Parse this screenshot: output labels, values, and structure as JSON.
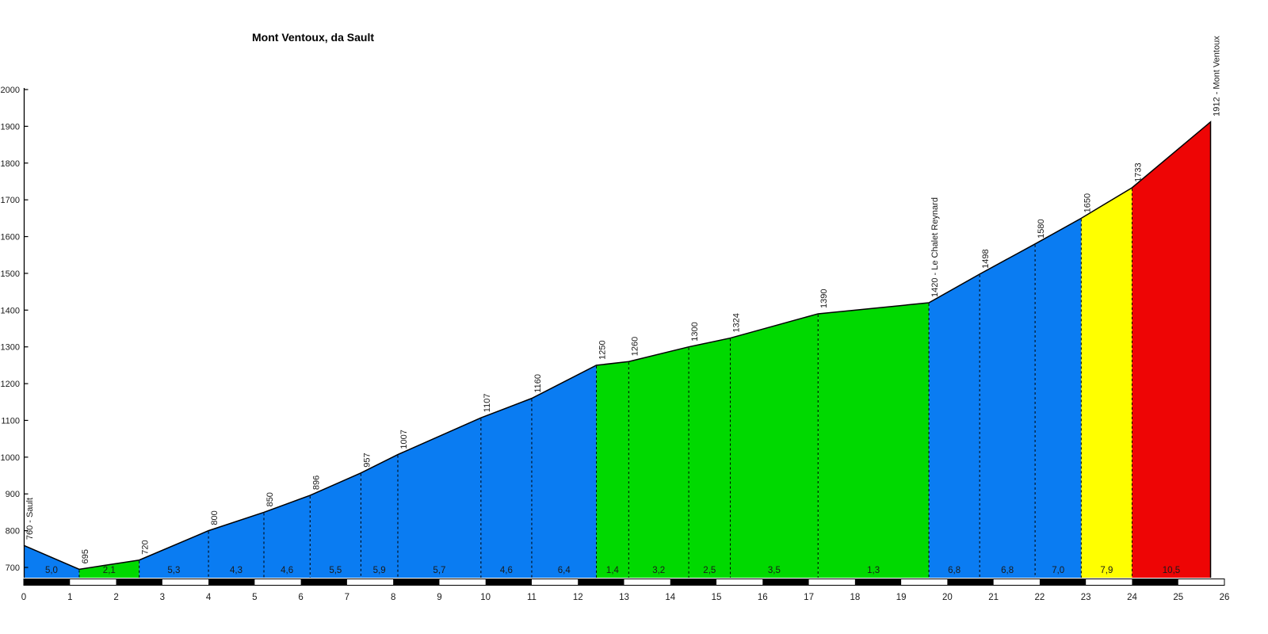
{
  "header": {
    "title": "Mont Ventoux, da Sault"
  },
  "chart_data": {
    "type": "area",
    "title": "Mont Ventoux, da Sault",
    "xlabel": "",
    "ylabel": "",
    "x_unit": "km",
    "y_unit": "m",
    "xlim": [
      0,
      26
    ],
    "ylim": [
      700,
      2000
    ],
    "grid": false,
    "legend": false,
    "xticks": [
      0,
      1,
      2,
      3,
      4,
      5,
      6,
      7,
      8,
      9,
      10,
      11,
      12,
      13,
      14,
      15,
      16,
      17,
      18,
      19,
      20,
      21,
      22,
      23,
      24,
      25,
      26
    ],
    "yticks": [
      700,
      800,
      900,
      1000,
      1100,
      1200,
      1300,
      1400,
      1500,
      1600,
      1700,
      1800,
      1900,
      2000
    ],
    "points": [
      {
        "km": 0.0,
        "elev": 760,
        "label": "760 - Sault"
      },
      {
        "km": 1.2,
        "elev": 695,
        "label": "695"
      },
      {
        "km": 2.5,
        "elev": 720,
        "label": "720"
      },
      {
        "km": 4.0,
        "elev": 800,
        "label": "800"
      },
      {
        "km": 5.2,
        "elev": 850,
        "label": "850"
      },
      {
        "km": 6.2,
        "elev": 896,
        "label": "896"
      },
      {
        "km": 7.3,
        "elev": 957,
        "label": "957"
      },
      {
        "km": 8.1,
        "elev": 1007,
        "label": "1007"
      },
      {
        "km": 9.9,
        "elev": 1107,
        "label": "1107"
      },
      {
        "km": 11.0,
        "elev": 1160,
        "label": "1160"
      },
      {
        "km": 12.4,
        "elev": 1250,
        "label": "1250"
      },
      {
        "km": 13.1,
        "elev": 1260,
        "label": "1260"
      },
      {
        "km": 14.4,
        "elev": 1300,
        "label": "1300"
      },
      {
        "km": 15.3,
        "elev": 1324,
        "label": "1324"
      },
      {
        "km": 17.2,
        "elev": 1390,
        "label": "1390"
      },
      {
        "km": 19.6,
        "elev": 1420,
        "label": "1420 - Le Chalet Reynard"
      },
      {
        "km": 20.7,
        "elev": 1498,
        "label": "1498"
      },
      {
        "km": 21.9,
        "elev": 1580,
        "label": "1580"
      },
      {
        "km": 22.9,
        "elev": 1650,
        "label": "1650"
      },
      {
        "km": 24.0,
        "elev": 1733,
        "label": "1733"
      },
      {
        "km": 25.7,
        "elev": 1912,
        "label": "1912 - Mont Ventoux"
      }
    ],
    "segments": [
      {
        "gradient": "5,0",
        "color": "blue"
      },
      {
        "gradient": "2,1",
        "color": "green"
      },
      {
        "gradient": "5,3",
        "color": "blue"
      },
      {
        "gradient": "4,3",
        "color": "blue"
      },
      {
        "gradient": "4,6",
        "color": "blue"
      },
      {
        "gradient": "5,5",
        "color": "blue"
      },
      {
        "gradient": "5,9",
        "color": "blue"
      },
      {
        "gradient": "5,7",
        "color": "blue"
      },
      {
        "gradient": "4,6",
        "color": "blue"
      },
      {
        "gradient": "6,4",
        "color": "blue"
      },
      {
        "gradient": "1,4",
        "color": "green"
      },
      {
        "gradient": "3,2",
        "color": "green"
      },
      {
        "gradient": "2,5",
        "color": "green"
      },
      {
        "gradient": "3,5",
        "color": "green"
      },
      {
        "gradient": "1,3",
        "color": "green"
      },
      {
        "gradient": "6,8",
        "color": "blue"
      },
      {
        "gradient": "6,8",
        "color": "blue"
      },
      {
        "gradient": "7,0",
        "color": "blue"
      },
      {
        "gradient": "7,9",
        "color": "yellow"
      },
      {
        "gradient": "10,5",
        "color": "red"
      }
    ],
    "palette": {
      "blue": "#0a7cf2",
      "green": "#00d900",
      "yellow": "#ffff00",
      "red": "#ee0505",
      "outline": "#000000",
      "ruler_dark": "#000000",
      "ruler_light": "#ffffff",
      "text": "#1a1a1a"
    }
  }
}
